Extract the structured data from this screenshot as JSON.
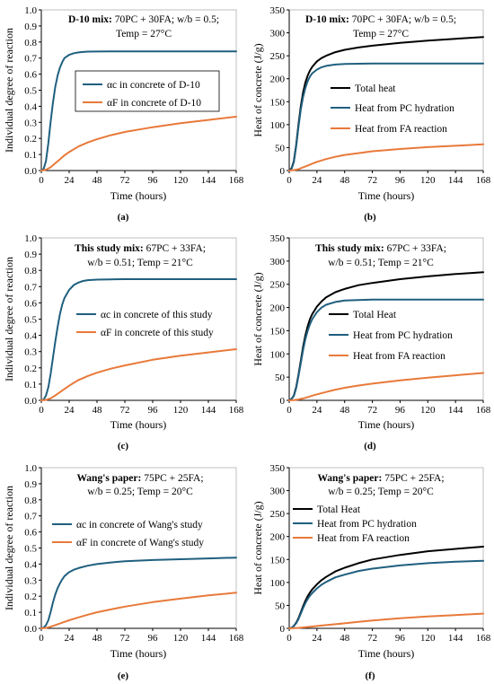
{
  "chart_data": [
    {
      "id": "a",
      "type": "line",
      "sublabel": "(a)",
      "xlabel": "Time (hours)",
      "ylabel": "Individual degree of reaction",
      "xticks": [
        0,
        24,
        48,
        72,
        96,
        120,
        144,
        168
      ],
      "yticks": [
        "0.0",
        "0.1",
        "0.2",
        "0.3",
        "0.4",
        "0.5",
        "0.6",
        "0.7",
        "0.8",
        "0.9",
        "1.0"
      ],
      "xlim": [
        0,
        168
      ],
      "ylim": [
        0,
        1.0
      ],
      "annotation": {
        "bold": "D-10 mix:",
        "line1": " 70PC + 30FA; w/b = 0.5;",
        "line2": "Temp = 27°C"
      },
      "legend_position": "upper-center-boxed",
      "series": [
        {
          "name": "αc in concrete of D-10",
          "color": "#1f5f7f",
          "x": [
            0,
            2,
            4,
            6,
            8,
            10,
            12,
            14,
            16,
            18,
            20,
            24,
            28,
            32,
            36,
            40,
            48,
            60,
            72,
            96,
            120,
            144,
            168
          ],
          "y": [
            0,
            0.01,
            0.06,
            0.17,
            0.3,
            0.42,
            0.52,
            0.59,
            0.64,
            0.675,
            0.7,
            0.72,
            0.73,
            0.735,
            0.738,
            0.74,
            0.741,
            0.742,
            0.742,
            0.742,
            0.742,
            0.742,
            0.742
          ]
        },
        {
          "name": "αF in concrete of D-10",
          "color": "#e8793a",
          "x": [
            0,
            4,
            8,
            12,
            16,
            20,
            24,
            32,
            40,
            48,
            60,
            72,
            96,
            120,
            144,
            168
          ],
          "y": [
            0,
            0.005,
            0.02,
            0.045,
            0.07,
            0.095,
            0.115,
            0.15,
            0.175,
            0.195,
            0.22,
            0.24,
            0.27,
            0.295,
            0.315,
            0.335
          ]
        }
      ]
    },
    {
      "id": "b",
      "type": "line",
      "sublabel": "(b)",
      "xlabel": "Time (hours)",
      "ylabel": "Heat of concrete (J/g)",
      "xticks": [
        0,
        24,
        48,
        72,
        96,
        120,
        144,
        168
      ],
      "yticks": [
        "0",
        "50",
        "100",
        "150",
        "200",
        "250",
        "300",
        "350"
      ],
      "xlim": [
        0,
        168
      ],
      "ylim": [
        0,
        350
      ],
      "annotation": {
        "bold": "D-10 mix:",
        "line1": " 70PC + 30FA; w/b = 0.5;",
        "line2": "Temp = 27°C"
      },
      "legend_position": "right-middle",
      "series": [
        {
          "name": "Total heat",
          "color": "#000000",
          "x": [
            0,
            2,
            4,
            6,
            8,
            10,
            12,
            14,
            16,
            18,
            20,
            24,
            28,
            32,
            40,
            48,
            60,
            72,
            96,
            120,
            144,
            168
          ],
          "y": [
            0,
            5,
            20,
            55,
            100,
            140,
            170,
            192,
            207,
            218,
            226,
            238,
            245,
            250,
            258,
            263,
            268,
            272,
            278,
            283,
            287,
            291
          ]
        },
        {
          "name": "Heat from PC hydration",
          "color": "#1f5f7f",
          "x": [
            0,
            2,
            4,
            6,
            8,
            10,
            12,
            14,
            16,
            18,
            20,
            24,
            28,
            32,
            40,
            48,
            72,
            96,
            120,
            144,
            168
          ],
          "y": [
            0,
            4,
            18,
            52,
            95,
            133,
            160,
            180,
            195,
            205,
            212,
            220,
            225,
            228,
            231,
            232,
            233,
            233,
            233,
            233,
            233
          ]
        },
        {
          "name": "Heat from FA reaction",
          "color": "#e8793a",
          "x": [
            0,
            4,
            8,
            12,
            16,
            20,
            24,
            32,
            40,
            48,
            60,
            72,
            96,
            120,
            144,
            168
          ],
          "y": [
            0,
            1,
            3,
            7,
            11,
            15,
            19,
            25,
            30,
            34,
            38,
            42,
            47,
            51,
            54,
            57
          ]
        }
      ]
    },
    {
      "id": "c",
      "type": "line",
      "sublabel": "(c)",
      "xlabel": "Time (hours)",
      "ylabel": "Individual degree of reaction",
      "xticks": [
        0,
        24,
        48,
        72,
        96,
        120,
        144,
        168
      ],
      "yticks": [
        "0.0",
        "0.1",
        "0.2",
        "0.3",
        "0.4",
        "0.5",
        "0.6",
        "0.7",
        "0.8",
        "0.9",
        "1.0"
      ],
      "xlim": [
        0,
        168
      ],
      "ylim": [
        0,
        1.0
      ],
      "annotation": {
        "bold": "This study mix:",
        "line1": " 67PC + 33FA;",
        "line2": "w/b = 0.51; Temp = 21°C"
      },
      "legend_position": "center",
      "series": [
        {
          "name": "αc in concrete of this study",
          "color": "#1f5f7f",
          "x": [
            0,
            2,
            4,
            6,
            8,
            10,
            12,
            14,
            16,
            18,
            20,
            24,
            28,
            32,
            36,
            40,
            48,
            60,
            72,
            96,
            120,
            144,
            168
          ],
          "y": [
            0,
            0.005,
            0.03,
            0.08,
            0.16,
            0.26,
            0.36,
            0.45,
            0.53,
            0.59,
            0.63,
            0.68,
            0.71,
            0.725,
            0.735,
            0.74,
            0.743,
            0.745,
            0.746,
            0.746,
            0.746,
            0.746,
            0.746
          ]
        },
        {
          "name": "αF in concrete of this study",
          "color": "#e8793a",
          "x": [
            0,
            4,
            8,
            12,
            16,
            20,
            24,
            32,
            40,
            48,
            60,
            72,
            96,
            120,
            144,
            168
          ],
          "y": [
            0,
            0.003,
            0.012,
            0.03,
            0.05,
            0.07,
            0.09,
            0.125,
            0.15,
            0.17,
            0.195,
            0.215,
            0.25,
            0.275,
            0.295,
            0.315
          ]
        }
      ]
    },
    {
      "id": "d",
      "type": "line",
      "sublabel": "(d)",
      "xlabel": "Time (hours)",
      "ylabel": "Heat of concrete (J/g)",
      "xticks": [
        0,
        24,
        48,
        72,
        96,
        120,
        144,
        168
      ],
      "yticks": [
        "0",
        "50",
        "100",
        "150",
        "200",
        "250",
        "300",
        "350"
      ],
      "xlim": [
        0,
        168
      ],
      "ylim": [
        0,
        350
      ],
      "annotation": {
        "bold": "This study mix:",
        "line1": " 67PC + 33FA;",
        "line2": "w/b = 0.51; Temp = 21°C"
      },
      "legend_position": "right-middle",
      "series": [
        {
          "name": "Total Heat",
          "color": "#000000",
          "x": [
            0,
            2,
            4,
            6,
            8,
            10,
            12,
            14,
            16,
            18,
            20,
            24,
            28,
            32,
            40,
            48,
            60,
            72,
            96,
            120,
            144,
            168
          ],
          "y": [
            0,
            3,
            10,
            28,
            55,
            85,
            115,
            140,
            160,
            175,
            186,
            202,
            213,
            222,
            233,
            240,
            248,
            253,
            261,
            267,
            272,
            276
          ]
        },
        {
          "name": "Heat from PC hydration",
          "color": "#1f5f7f",
          "x": [
            0,
            2,
            4,
            6,
            8,
            10,
            12,
            14,
            16,
            18,
            20,
            24,
            28,
            32,
            40,
            48,
            72,
            96,
            120,
            144,
            168
          ],
          "y": [
            0,
            3,
            9,
            26,
            52,
            80,
            108,
            132,
            150,
            164,
            175,
            190,
            200,
            206,
            212,
            215,
            217,
            217,
            217,
            217,
            217
          ]
        },
        {
          "name": "Heat from FA reaction",
          "color": "#e8793a",
          "x": [
            0,
            4,
            8,
            12,
            16,
            20,
            24,
            32,
            40,
            48,
            60,
            72,
            96,
            120,
            144,
            168
          ],
          "y": [
            0,
            0.5,
            2,
            4,
            7,
            10,
            13,
            18,
            23,
            27,
            32,
            36,
            43,
            49,
            54,
            59
          ]
        }
      ]
    },
    {
      "id": "e",
      "type": "line",
      "sublabel": "(e)",
      "xlabel": "Time (hours)",
      "ylabel": "Individual degree of reaction",
      "xticks": [
        0,
        24,
        48,
        72,
        96,
        120,
        144,
        168
      ],
      "yticks": [
        "0.0",
        "0.1",
        "0.2",
        "0.3",
        "0.4",
        "0.5",
        "0.6",
        "0.7",
        "0.8",
        "0.9",
        "1.0"
      ],
      "xlim": [
        0,
        168
      ],
      "ylim": [
        0,
        1.0
      ],
      "annotation": {
        "bold": "Wang's paper:",
        "line1": " 75PC + 25FA;",
        "line2": "w/b = 0.25; Temp = 20°C"
      },
      "legend_position": "center-left",
      "series": [
        {
          "name": "αc in concrete of Wang's study",
          "color": "#1f5f7f",
          "x": [
            0,
            2,
            4,
            6,
            8,
            10,
            12,
            14,
            16,
            18,
            20,
            24,
            28,
            32,
            40,
            48,
            60,
            72,
            96,
            120,
            144,
            168
          ],
          "y": [
            0,
            0.005,
            0.02,
            0.05,
            0.1,
            0.16,
            0.21,
            0.25,
            0.28,
            0.305,
            0.325,
            0.35,
            0.365,
            0.375,
            0.39,
            0.4,
            0.41,
            0.418,
            0.425,
            0.43,
            0.435,
            0.44
          ]
        },
        {
          "name": "αF in concrete of Wang's study",
          "color": "#e8793a",
          "x": [
            0,
            4,
            8,
            12,
            16,
            20,
            24,
            32,
            40,
            48,
            60,
            72,
            96,
            120,
            144,
            168
          ],
          "y": [
            0,
            0.003,
            0.01,
            0.02,
            0.03,
            0.04,
            0.05,
            0.068,
            0.085,
            0.1,
            0.118,
            0.135,
            0.163,
            0.185,
            0.205,
            0.222
          ]
        }
      ]
    },
    {
      "id": "f",
      "type": "line",
      "sublabel": "(f)",
      "xlabel": "Time (hours)",
      "ylabel": "Heat of concrete (J/g)",
      "xticks": [
        0,
        24,
        48,
        72,
        96,
        120,
        144,
        168
      ],
      "yticks": [
        "0",
        "50",
        "100",
        "150",
        "200",
        "250",
        "300",
        "350"
      ],
      "xlim": [
        0,
        168
      ],
      "ylim": [
        0,
        350
      ],
      "annotation": {
        "bold": "Wang's paper:",
        "line1": " 75PC + 25FA;",
        "line2": "w/b = 0.25; Temp = 20°C"
      },
      "legend_position": "upper-left",
      "series": [
        {
          "name": "Total Heat",
          "color": "#000000",
          "x": [
            0,
            2,
            4,
            6,
            8,
            10,
            12,
            14,
            16,
            18,
            20,
            24,
            28,
            32,
            40,
            48,
            60,
            72,
            96,
            120,
            144,
            168
          ],
          "y": [
            0,
            1,
            5,
            12,
            22,
            35,
            48,
            60,
            70,
            78,
            85,
            96,
            105,
            112,
            124,
            132,
            142,
            150,
            160,
            168,
            173,
            178
          ]
        },
        {
          "name": "Heat from PC hydration",
          "color": "#1f5f7f",
          "x": [
            0,
            2,
            4,
            6,
            8,
            10,
            12,
            14,
            16,
            18,
            20,
            24,
            28,
            32,
            40,
            48,
            60,
            72,
            96,
            120,
            144,
            168
          ],
          "y": [
            0,
            1,
            5,
            11,
            20,
            32,
            44,
            55,
            64,
            71,
            77,
            87,
            95,
            101,
            111,
            117,
            125,
            130,
            137,
            142,
            145,
            147
          ]
        },
        {
          "name": "Heat from FA reaction",
          "color": "#e8793a",
          "x": [
            0,
            4,
            8,
            12,
            16,
            20,
            24,
            32,
            40,
            48,
            60,
            72,
            96,
            120,
            144,
            168
          ],
          "y": [
            0,
            0.3,
            1,
            2,
            3,
            4,
            5,
            7,
            9,
            11,
            14,
            17,
            22,
            26,
            29,
            32
          ]
        }
      ]
    }
  ]
}
